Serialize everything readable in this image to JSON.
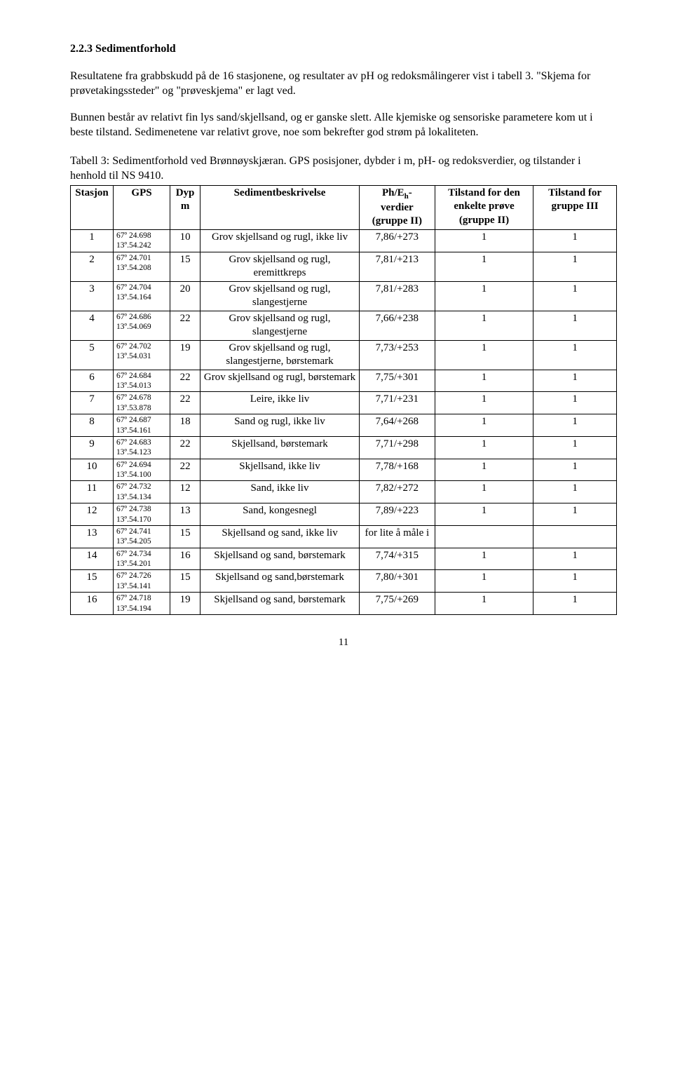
{
  "heading": "2.2.3 Sedimentforhold",
  "para1": "Resultatene fra grabbskudd på de 16 stasjonene, og resultater av pH og redoksmålingerer vist i tabell 3. \"Skjema for prøvetakingssteder\" og \"prøveskjema\" er lagt ved.",
  "para2": "Bunnen består av relativt fin lys sand/skjellsand, og er ganske slett. Alle kjemiske og sensoriske parametere kom ut i beste tilstand. Sedimenetene var relativt grove, noe som bekrefter god strøm på lokaliteten.",
  "caption": "Tabell 3: Sedimentforhold ved Brønnøyskjæran. GPS posisjoner, dybder i m, pH- og redoksverdier, og tilstander i henhold til NS 9410.",
  "headers": {
    "stasjon": "Stasjon",
    "gps": "GPS",
    "dyp_line1": "Dyp",
    "dyp_line2": "m",
    "sediment": "Sedimentbeskrivelse",
    "ph_line1": "Ph/E",
    "ph_sub": "h",
    "ph_line1_after": "-",
    "ph_line2": "verdier",
    "ph_line3": "(gruppe II)",
    "t2_line1": "Tilstand for den",
    "t2_line2": "enkelte prøve",
    "t2_line3": "(gruppe II)",
    "t3_line1": "Tilstand for",
    "t3_line2": "gruppe III"
  },
  "rows": [
    {
      "stasjon": "1",
      "gps1": "67º 24.698",
      "gps2": "13º.54.242",
      "dyp": "10",
      "desc": "Grov skjellsand og rugl, ikke liv",
      "ph": "7,86/+273",
      "t2": "1",
      "t3": "1"
    },
    {
      "stasjon": "2",
      "gps1": "67º 24.701",
      "gps2": "13º.54.208",
      "dyp": "15",
      "desc": "Grov skjellsand og rugl, eremittkreps",
      "ph": "7,81/+213",
      "t2": "1",
      "t3": "1"
    },
    {
      "stasjon": "3",
      "gps1": "67º 24.704",
      "gps2": "13º.54.164",
      "dyp": "20",
      "desc": "Grov skjellsand og rugl, slangestjerne",
      "ph": "7,81/+283",
      "t2": "1",
      "t3": "1"
    },
    {
      "stasjon": "4",
      "gps1": "67º 24.686",
      "gps2": "13º.54.069",
      "dyp": "22",
      "desc": "Grov skjellsand og rugl, slangestjerne",
      "ph": "7,66/+238",
      "t2": "1",
      "t3": "1"
    },
    {
      "stasjon": "5",
      "gps1": "67º 24.702",
      "gps2": "13º.54.031",
      "dyp": "19",
      "desc": "Grov skjellsand og rugl, slangestjerne, børstemark",
      "ph": "7,73/+253",
      "t2": "1",
      "t3": "1"
    },
    {
      "stasjon": "6",
      "gps1": "67º 24.684",
      "gps2": "13º.54.013",
      "dyp": "22",
      "desc": "Grov skjellsand og rugl, børstemark",
      "ph": "7,75/+301",
      "t2": "1",
      "t3": "1"
    },
    {
      "stasjon": "7",
      "gps1": "67º 24.678",
      "gps2": "13º.53.878",
      "dyp": "22",
      "desc": "Leire, ikke liv",
      "ph": "7,71/+231",
      "t2": "1",
      "t3": "1"
    },
    {
      "stasjon": "8",
      "gps1": "67º 24.687",
      "gps2": "13º.54.161",
      "dyp": "18",
      "desc": "Sand og rugl, ikke liv",
      "ph": "7,64/+268",
      "t2": "1",
      "t3": "1"
    },
    {
      "stasjon": "9",
      "gps1": "67º 24.683",
      "gps2": "13º.54.123",
      "dyp": "22",
      "desc": "Skjellsand, børstemark",
      "ph": "7,71/+298",
      "t2": "1",
      "t3": "1"
    },
    {
      "stasjon": "10",
      "gps1": "67º 24.694",
      "gps2": "13º.54.100",
      "dyp": "22",
      "desc": "Skjellsand, ikke liv",
      "ph": "7,78/+168",
      "t2": "1",
      "t3": "1"
    },
    {
      "stasjon": "11",
      "gps1": "67º 24.732",
      "gps2": "13º.54.134",
      "dyp": "12",
      "desc": "Sand, ikke liv",
      "ph": "7,82/+272",
      "t2": "1",
      "t3": "1"
    },
    {
      "stasjon": "12",
      "gps1": "67º 24.738",
      "gps2": "13º.54.170",
      "dyp": "13",
      "desc": "Sand, kongesnegl",
      "ph": "7,89/+223",
      "t2": "1",
      "t3": "1"
    },
    {
      "stasjon": "13",
      "gps1": "67º 24.741",
      "gps2": "13º.54.205",
      "dyp": "15",
      "desc": "Skjellsand og sand, ikke liv",
      "ph": "for lite å måle i",
      "t2": "",
      "t3": ""
    },
    {
      "stasjon": "14",
      "gps1": "67º 24.734",
      "gps2": "13º.54.201",
      "dyp": "16",
      "desc": "Skjellsand og sand, børstemark",
      "ph": "7,74/+315",
      "t2": "1",
      "t3": "1"
    },
    {
      "stasjon": "15",
      "gps1": "67º 24.726",
      "gps2": "13º.54.141",
      "dyp": "15",
      "desc": "Skjellsand og sand,børstemark",
      "ph": "7,80/+301",
      "t2": "1",
      "t3": "1"
    },
    {
      "stasjon": "16",
      "gps1": "67º 24.718",
      "gps2": "13º.54.194",
      "dyp": "19",
      "desc": "Skjellsand og sand, børstemark",
      "ph": "7,75/+269",
      "t2": "1",
      "t3": "1"
    }
  ],
  "page_number": "11"
}
